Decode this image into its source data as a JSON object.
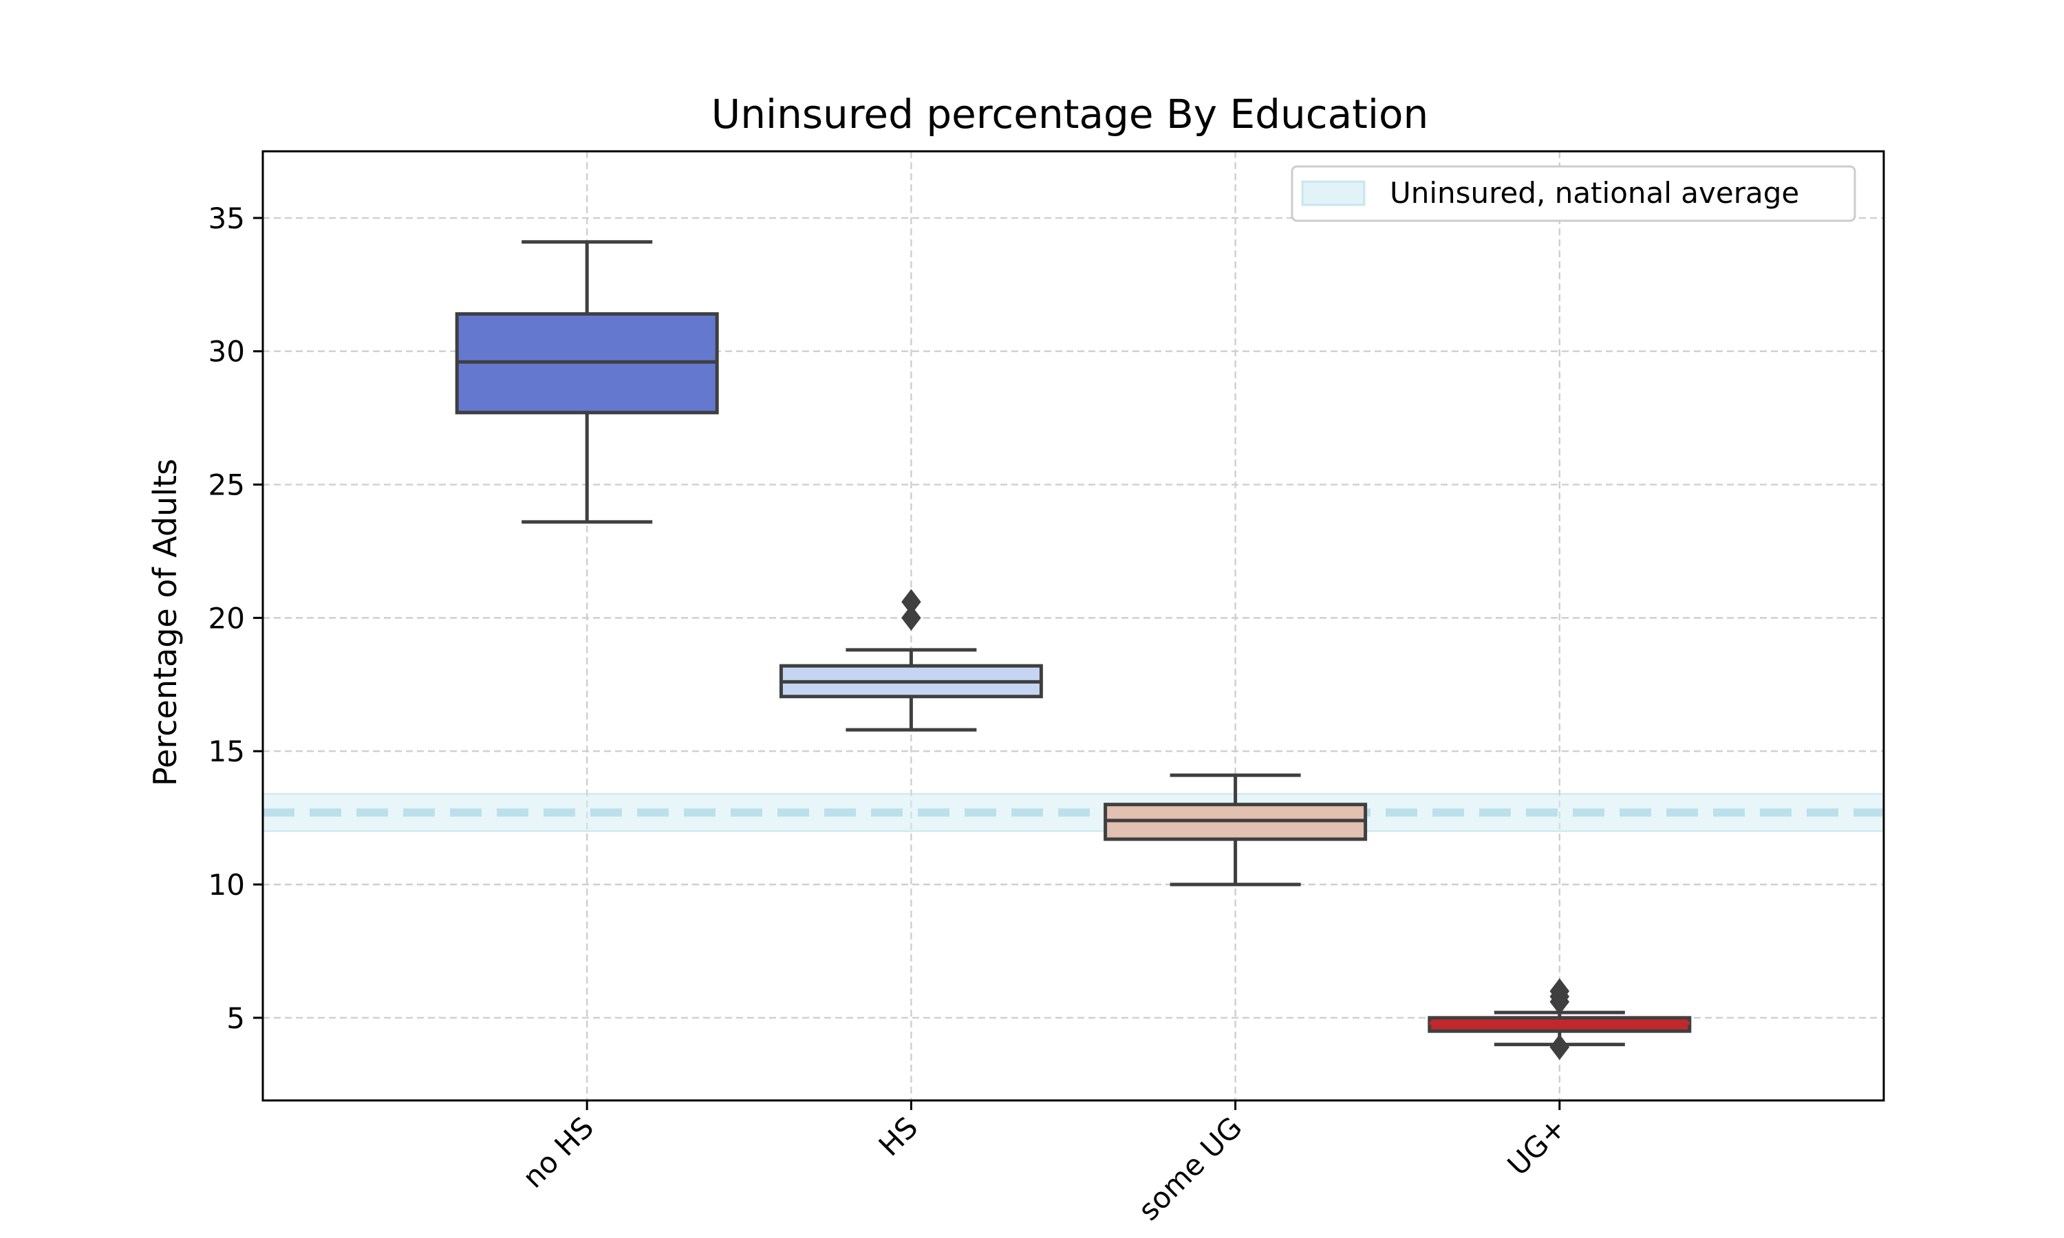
{
  "chart_data": {
    "type": "box",
    "title": "Uninsured percentage By Education",
    "xlabel": "",
    "ylabel": "Percentage of Adults",
    "ylim": [
      1.9,
      37.5
    ],
    "yticks": [
      5,
      10,
      15,
      20,
      25,
      30,
      35
    ],
    "grid": true,
    "legend_position": "top-right",
    "categories": [
      "no HS",
      "HS",
      "some UG",
      "UG+"
    ],
    "boxes": [
      {
        "category": "no HS",
        "whisker_low": 23.6,
        "q1": 27.7,
        "median": 29.6,
        "q3": 31.4,
        "whisker_high": 34.1,
        "outliers": [],
        "color": "#6478d0",
        "median_color": "#3f3f3f"
      },
      {
        "category": "HS",
        "whisker_low": 15.8,
        "q1": 17.05,
        "median": 17.6,
        "q3": 18.2,
        "whisker_high": 18.8,
        "outliers": [
          20.0,
          20.6
        ],
        "color": "#c6d5f2",
        "median_color": "#3f3f3f"
      },
      {
        "category": "some UG",
        "whisker_low": 10.0,
        "q1": 11.7,
        "median": 12.4,
        "q3": 13.0,
        "whisker_high": 14.1,
        "outliers": [],
        "color": "#e2c0b2",
        "median_color": "#3f3f3f"
      },
      {
        "category": "UG+",
        "whisker_low": 4.0,
        "q1": 4.5,
        "median": 4.8,
        "q3": 5.0,
        "whisker_high": 5.2,
        "outliers": [
          3.9,
          5.6,
          5.8,
          6.0
        ],
        "color": "#c0282e",
        "median_color": "#c0282e"
      }
    ],
    "reference": {
      "label": "Uninsured, national average",
      "value": 12.7,
      "band": [
        12.0,
        13.4
      ],
      "line_color": "#add8e6",
      "band_color": "#d6eef5"
    }
  }
}
